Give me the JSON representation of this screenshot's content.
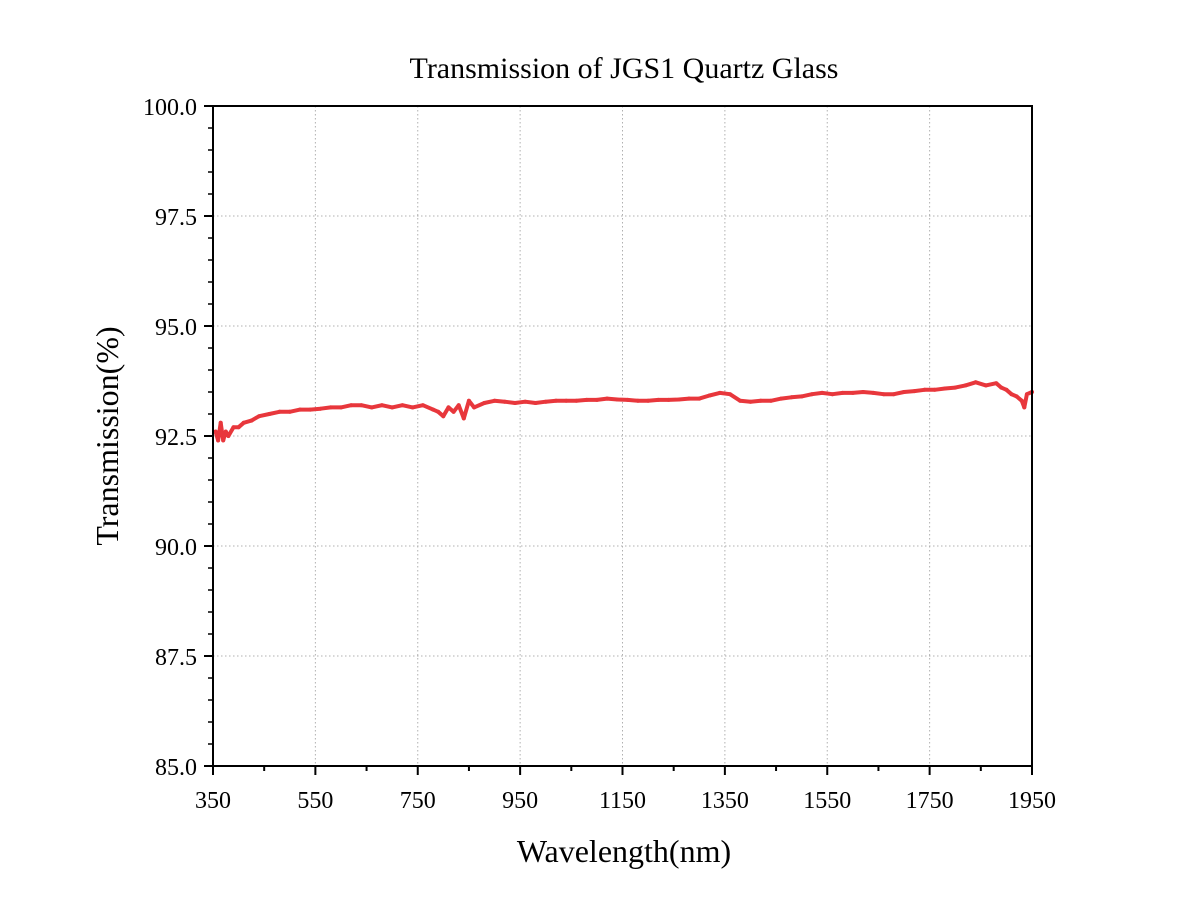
{
  "chart_data": {
    "type": "line",
    "title": "Transmission of JGS1 Quartz Glass",
    "xlabel": "Wavelength(nm)",
    "ylabel": "Transmission(%)",
    "xlim": [
      350,
      1950
    ],
    "ylim": [
      85.0,
      100.0
    ],
    "x_ticks": [
      350,
      550,
      750,
      950,
      1150,
      1350,
      1550,
      1750,
      1950
    ],
    "x_tick_labels": [
      "350",
      "550",
      "750",
      "950",
      "1150",
      "1350",
      "1550",
      "1750",
      "1950"
    ],
    "y_ticks": [
      85.0,
      87.5,
      90.0,
      92.5,
      95.0,
      97.5,
      100.0
    ],
    "y_tick_labels": [
      "85.0",
      "87.5",
      "90.0",
      "92.5",
      "95.0",
      "97.5",
      "100.0"
    ],
    "grid": true,
    "series": [
      {
        "color": "#e8373c",
        "points": [
          [
            355,
            92.6
          ],
          [
            360,
            92.4
          ],
          [
            365,
            92.8
          ],
          [
            370,
            92.4
          ],
          [
            375,
            92.6
          ],
          [
            380,
            92.5
          ],
          [
            390,
            92.7
          ],
          [
            400,
            92.7
          ],
          [
            410,
            92.8
          ],
          [
            425,
            92.85
          ],
          [
            440,
            92.95
          ],
          [
            460,
            93.0
          ],
          [
            480,
            93.05
          ],
          [
            500,
            93.05
          ],
          [
            520,
            93.1
          ],
          [
            540,
            93.1
          ],
          [
            560,
            93.12
          ],
          [
            580,
            93.15
          ],
          [
            600,
            93.15
          ],
          [
            620,
            93.2
          ],
          [
            640,
            93.2
          ],
          [
            660,
            93.15
          ],
          [
            680,
            93.2
          ],
          [
            700,
            93.15
          ],
          [
            720,
            93.2
          ],
          [
            740,
            93.15
          ],
          [
            760,
            93.2
          ],
          [
            780,
            93.1
          ],
          [
            790,
            93.05
          ],
          [
            800,
            92.95
          ],
          [
            810,
            93.15
          ],
          [
            820,
            93.05
          ],
          [
            830,
            93.2
          ],
          [
            840,
            92.9
          ],
          [
            850,
            93.3
          ],
          [
            860,
            93.15
          ],
          [
            880,
            93.25
          ],
          [
            900,
            93.3
          ],
          [
            920,
            93.28
          ],
          [
            940,
            93.25
          ],
          [
            960,
            93.28
          ],
          [
            980,
            93.25
          ],
          [
            1000,
            93.28
          ],
          [
            1020,
            93.3
          ],
          [
            1040,
            93.3
          ],
          [
            1060,
            93.3
          ],
          [
            1080,
            93.32
          ],
          [
            1100,
            93.32
          ],
          [
            1120,
            93.35
          ],
          [
            1140,
            93.33
          ],
          [
            1160,
            93.32
          ],
          [
            1180,
            93.3
          ],
          [
            1200,
            93.3
          ],
          [
            1220,
            93.32
          ],
          [
            1240,
            93.32
          ],
          [
            1260,
            93.33
          ],
          [
            1280,
            93.35
          ],
          [
            1300,
            93.35
          ],
          [
            1320,
            93.42
          ],
          [
            1340,
            93.48
          ],
          [
            1360,
            93.45
          ],
          [
            1380,
            93.3
          ],
          [
            1400,
            93.28
          ],
          [
            1420,
            93.3
          ],
          [
            1440,
            93.3
          ],
          [
            1460,
            93.35
          ],
          [
            1480,
            93.38
          ],
          [
            1500,
            93.4
          ],
          [
            1520,
            93.45
          ],
          [
            1540,
            93.48
          ],
          [
            1560,
            93.45
          ],
          [
            1580,
            93.48
          ],
          [
            1600,
            93.48
          ],
          [
            1620,
            93.5
          ],
          [
            1640,
            93.48
          ],
          [
            1660,
            93.45
          ],
          [
            1680,
            93.45
          ],
          [
            1700,
            93.5
          ],
          [
            1720,
            93.52
          ],
          [
            1740,
            93.55
          ],
          [
            1760,
            93.55
          ],
          [
            1780,
            93.58
          ],
          [
            1800,
            93.6
          ],
          [
            1820,
            93.65
          ],
          [
            1840,
            93.72
          ],
          [
            1860,
            93.65
          ],
          [
            1880,
            93.7
          ],
          [
            1890,
            93.6
          ],
          [
            1900,
            93.55
          ],
          [
            1910,
            93.45
          ],
          [
            1920,
            93.4
          ],
          [
            1930,
            93.3
          ],
          [
            1935,
            93.15
          ],
          [
            1940,
            93.45
          ],
          [
            1950,
            93.5
          ]
        ]
      }
    ]
  }
}
